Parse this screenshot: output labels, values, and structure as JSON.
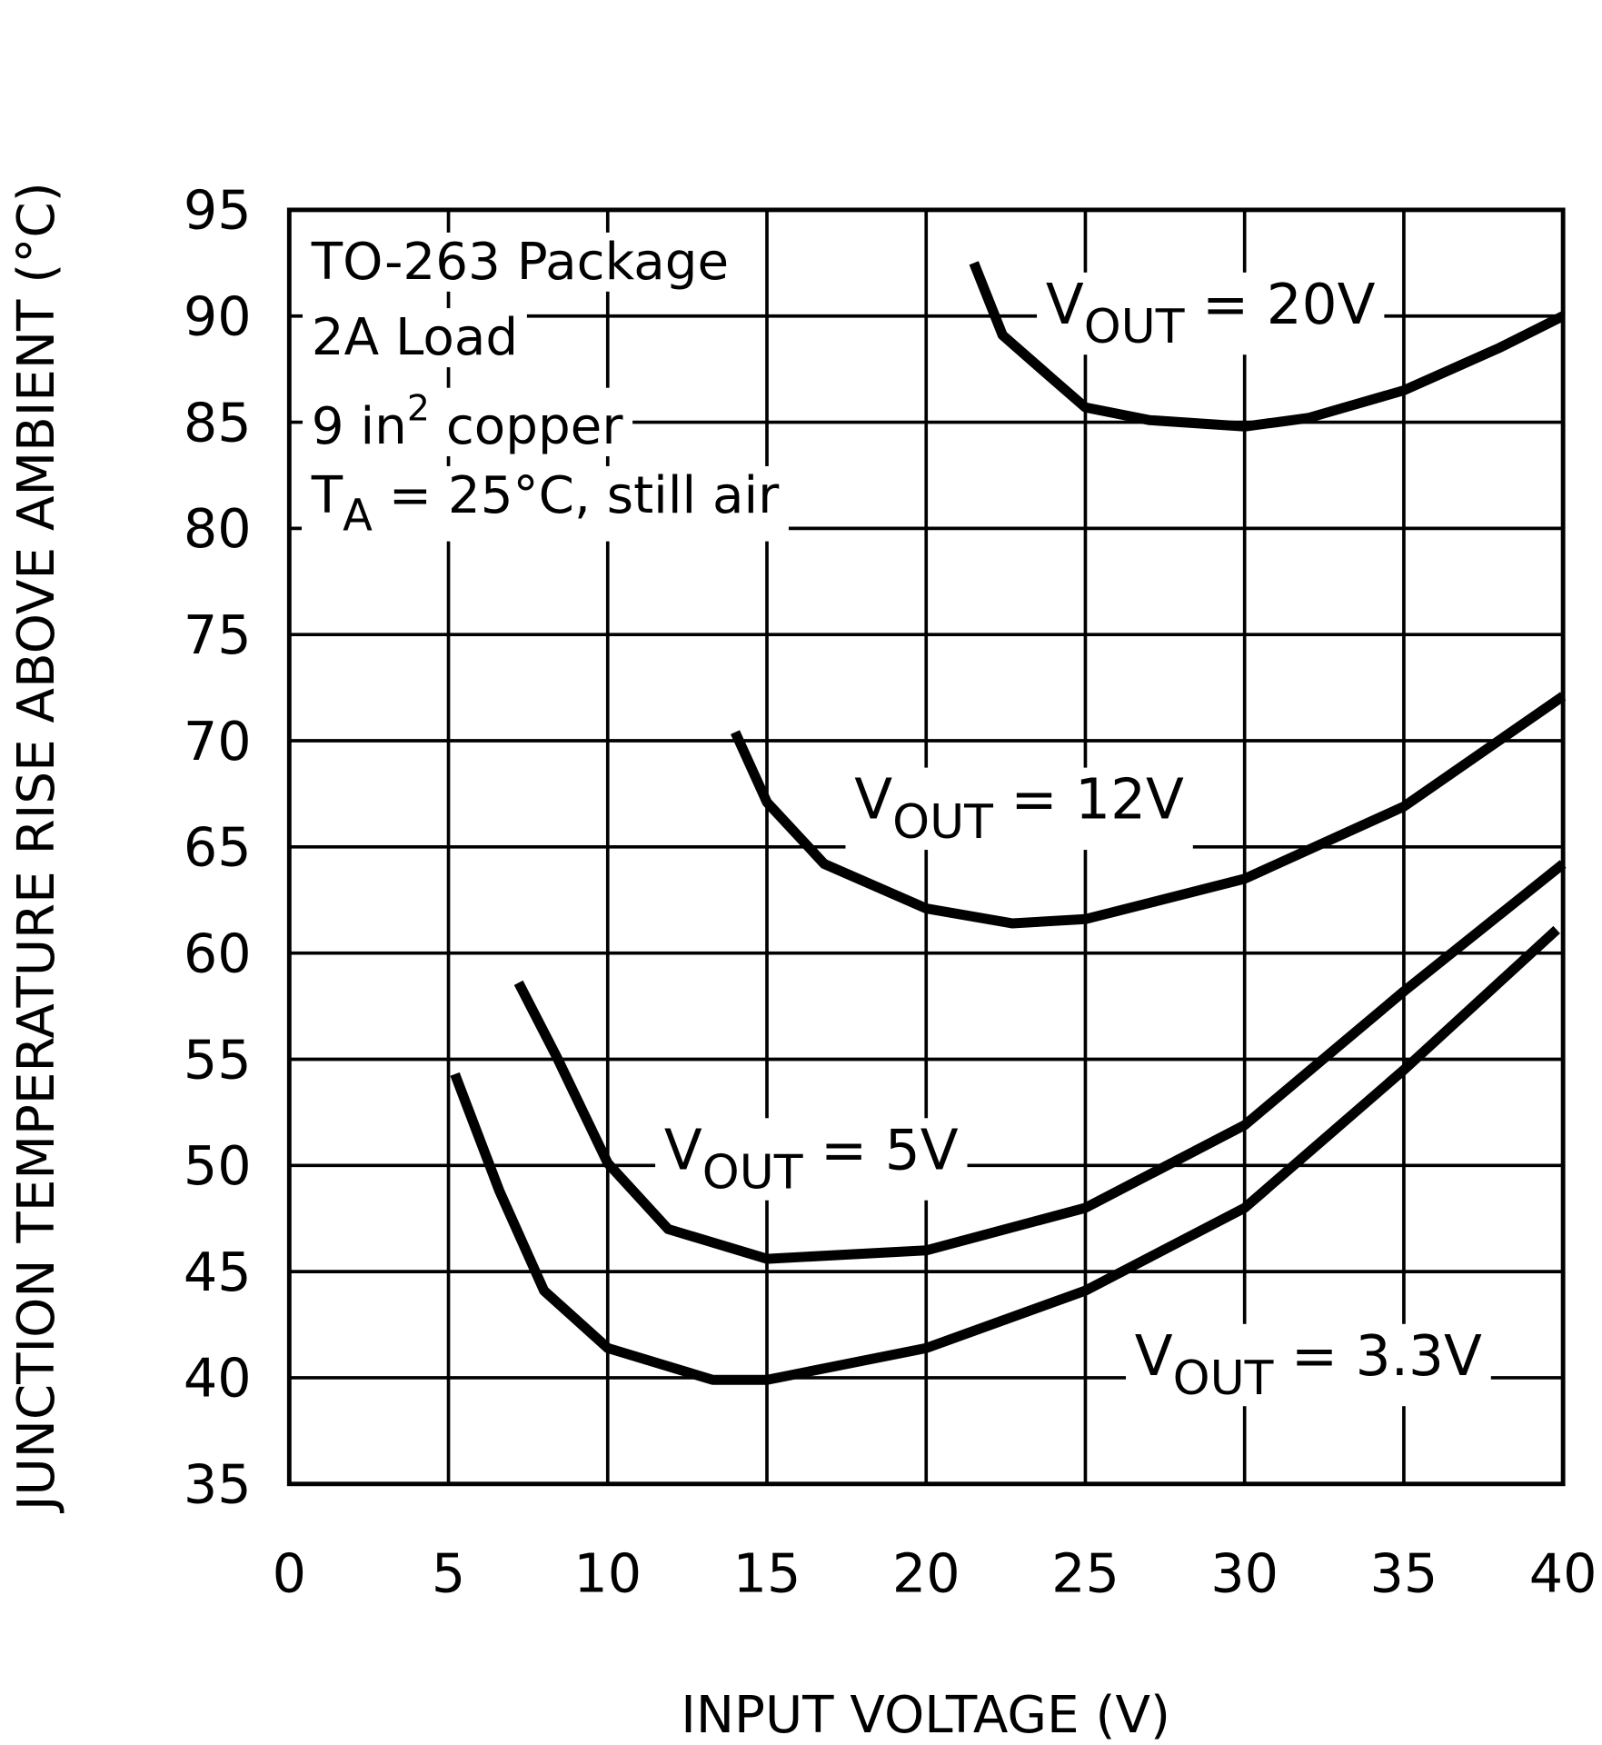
{
  "chart_data": {
    "type": "line",
    "xlabel": "INPUT VOLTAGE (V)",
    "ylabel": "JUNCTION TEMPERATURE RISE ABOVE AMBIENT (°C)",
    "xlim": [
      0,
      40
    ],
    "xticks": [
      0,
      5,
      10,
      15,
      20,
      25,
      30,
      35,
      40
    ],
    "ylim": [
      35,
      95
    ],
    "yticks": [
      35,
      40,
      45,
      50,
      55,
      60,
      65,
      70,
      75,
      80,
      85,
      90,
      95
    ],
    "grid": true,
    "annotations": [
      {
        "text": "TO-263 Package"
      },
      {
        "text": "2A Load"
      },
      {
        "text": "9 in",
        "sup": "2",
        "rest": " copper"
      },
      {
        "text": "T",
        "sub": "A",
        "rest": " = 25°C, still air"
      }
    ],
    "series": [
      {
        "label": {
          "text": "V",
          "sub": "OUT",
          "rest": " = 20V"
        },
        "color": "#000000",
        "x": [
          21.5,
          22.4,
          24,
          25,
          27,
          30,
          32,
          35,
          38,
          40
        ],
        "values": [
          92.5,
          89.1,
          87,
          85.7,
          85.1,
          84.8,
          85.2,
          86.5,
          88.5,
          90
        ]
      },
      {
        "label": {
          "text": "V",
          "sub": "OUT",
          "rest": " = 12V"
        },
        "color": "#000000",
        "x": [
          14,
          15,
          16.8,
          20,
          22.7,
          25,
          30,
          35,
          40
        ],
        "values": [
          70.4,
          67.1,
          64.2,
          62.1,
          61.4,
          61.6,
          63.5,
          66.9,
          72.1
        ]
      },
      {
        "label": {
          "text": "V",
          "sub": "OUT",
          "rest": " = 5V"
        },
        "color": "#000000",
        "x": [
          7.2,
          8.4,
          10,
          11.9,
          15,
          20,
          25,
          30,
          35,
          40
        ],
        "values": [
          58.6,
          55.1,
          50.1,
          47,
          45.6,
          46,
          48,
          51.9,
          58.2,
          64.2
        ]
      },
      {
        "label": {
          "text": "V",
          "sub": "OUT",
          "rest": " = 3.3V"
        },
        "color": "#000000",
        "x": [
          5.2,
          6.6,
          8,
          10,
          13.3,
          15,
          20,
          25,
          30,
          35,
          39.8
        ],
        "values": [
          54.3,
          48.8,
          44.1,
          41.4,
          39.9,
          39.9,
          41.4,
          44.1,
          48,
          54.5,
          61.1
        ]
      }
    ]
  }
}
